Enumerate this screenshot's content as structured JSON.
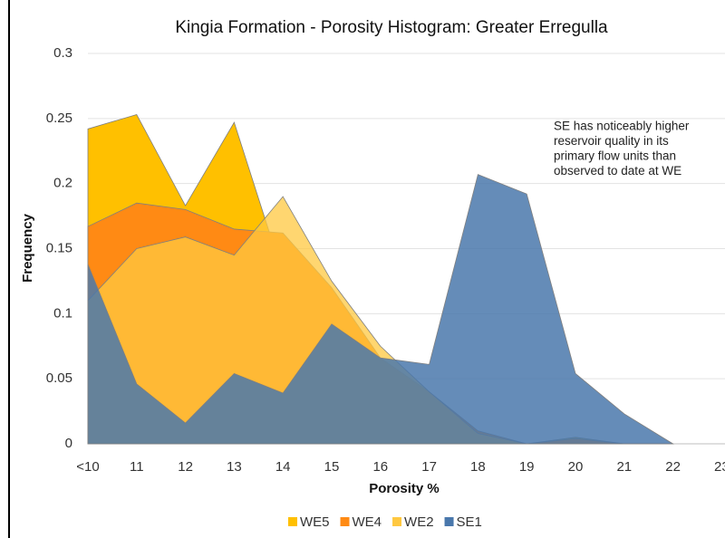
{
  "chart_data": {
    "type": "area",
    "title": "Kingia Formation - Porosity Histogram: Greater Erregulla",
    "x_label": "Porosity %",
    "y_label": "Frequency",
    "annotation": [
      "SE has noticeably higher",
      "reservoir quality in its",
      "primary flow units than",
      "observed to date at WE"
    ],
    "categories": [
      "<10",
      "11",
      "12",
      "13",
      "14",
      "15",
      "16",
      "17",
      "18",
      "19",
      "20",
      "21",
      "22",
      "23"
    ],
    "series": [
      {
        "name": "WE5",
        "color": "#FFC000",
        "values": [
          0.242,
          0.253,
          0.183,
          0.247,
          0.13,
          0.09,
          0.012,
          0.008,
          0,
          0,
          0.005,
          0,
          0,
          null
        ]
      },
      {
        "name": "WE4",
        "color": "#FF8A14",
        "values": [
          0.167,
          0.185,
          0.18,
          0.165,
          0.162,
          0.12,
          0.066,
          0.04,
          0.01,
          0,
          0.004,
          0,
          0,
          null
        ]
      },
      {
        "name": "WE2",
        "color": "#FFC840",
        "values": [
          0.11,
          0.15,
          0.159,
          0.145,
          0.19,
          0.125,
          0.075,
          0.04,
          0.008,
          0,
          0,
          0,
          0,
          null
        ]
      },
      {
        "name": "SE1",
        "color": "#4A78AC",
        "values": [
          0.138,
          0.046,
          0.016,
          0.054,
          0.039,
          0.092,
          0.066,
          0.061,
          0.207,
          0.192,
          0.054,
          0.023,
          0,
          null
        ]
      }
    ],
    "ylim": [
      0,
      0.3
    ],
    "yticks": [
      0,
      0.05,
      0.1,
      0.15,
      0.2,
      0.25,
      0.3
    ],
    "grid": true,
    "legend": "bottom"
  }
}
